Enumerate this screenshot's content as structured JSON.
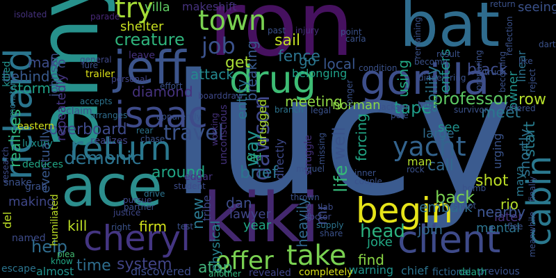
{
  "words": [
    {
      "text": "lucy",
      "color": "#3b5b8f"
    },
    {
      "text": "ron",
      "color": "#46115f"
    },
    {
      "text": "amy",
      "color": "#27918c"
    },
    {
      "text": "ace",
      "color": "#2c8e8d"
    },
    {
      "text": "kiki",
      "color": "#44286f"
    },
    {
      "text": "bat",
      "color": "#2f6c8e"
    },
    {
      "text": "richard",
      "color": "#2a758e"
    },
    {
      "text": "jeff",
      "color": "#3c548b"
    },
    {
      "text": "gorilla",
      "color": "#3d4e8a"
    },
    {
      "text": "cheryl",
      "color": "#443582"
    },
    {
      "text": "drug",
      "color": "#3dbc74"
    },
    {
      "text": "return",
      "color": "#2a788e"
    },
    {
      "text": "client",
      "color": "#3e4a89"
    },
    {
      "text": "isaac",
      "color": "#3e4b8a"
    },
    {
      "text": "begin",
      "color": "#e6e419"
    },
    {
      "text": "take",
      "color": "#7ad151"
    },
    {
      "text": "town",
      "color": "#7ad151"
    },
    {
      "text": "cabin",
      "color": "#2a788e"
    },
    {
      "text": "offer",
      "color": "#7ad151"
    },
    {
      "text": "yacht",
      "color": "#33638d"
    },
    {
      "text": "try",
      "color": "#a5db36"
    },
    {
      "text": "travel",
      "color": "#3b538b"
    },
    {
      "text": "job",
      "color": "#3b528b"
    },
    {
      "text": "professor",
      "color": "#5cc863"
    },
    {
      "text": "creature",
      "color": "#2fb47c"
    },
    {
      "text": "overboard",
      "color": "#3e4a89"
    },
    {
      "text": "demonic",
      "color": "#2c728e"
    },
    {
      "text": "around",
      "color": "#21a685"
    },
    {
      "text": "diamond",
      "color": "#46327e"
    },
    {
      "text": "dawson",
      "color": "#3f4788"
    },
    {
      "text": "way",
      "color": "#21918c"
    },
    {
      "text": "call",
      "color": "#31688e"
    },
    {
      "text": "back",
      "color": "#7ad151"
    },
    {
      "text": "brief",
      "color": "#2c738e"
    },
    {
      "text": "shot",
      "color": "#bddf26"
    },
    {
      "text": "head",
      "color": "#2cb17e"
    },
    {
      "text": "firm",
      "color": "#d2e21b"
    },
    {
      "text": "kill",
      "color": "#bddf26"
    },
    {
      "text": "time",
      "color": "#2e6e8e"
    },
    {
      "text": "system",
      "color": "#414487"
    },
    {
      "text": "help",
      "color": "#2f6c8e"
    },
    {
      "text": "find",
      "color": "#8bd646"
    },
    {
      "text": "nearby",
      "color": "#3b528b"
    },
    {
      "text": "joke",
      "color": "#22a884"
    },
    {
      "text": "row",
      "color": "#b5de2b"
    },
    {
      "text": "meet",
      "color": "#2a778e"
    },
    {
      "text": "start",
      "color": "#287d8e"
    },
    {
      "text": "rio",
      "color": "#b5de2b"
    },
    {
      "text": "life",
      "color": "#35b779"
    },
    {
      "text": "well",
      "color": "#3a538b"
    },
    {
      "text": "forcing",
      "color": "#21a685"
    },
    {
      "text": "tape",
      "color": "#1f9e89"
    },
    {
      "text": "meeting",
      "color": "#8fd744"
    },
    {
      "text": "sail",
      "color": "#c2df23"
    },
    {
      "text": "go",
      "color": "#2a778e"
    },
    {
      "text": "fence",
      "color": "#2c738e"
    },
    {
      "text": "local",
      "color": "#39568c"
    },
    {
      "text": "breaking",
      "color": "#38588c"
    },
    {
      "text": "attack",
      "color": "#23898e"
    },
    {
      "text": "entity",
      "color": "#2b748e"
    },
    {
      "text": "get",
      "color": "#a8db34"
    },
    {
      "text": "make",
      "color": "#3d4d8a"
    },
    {
      "text": "storm",
      "color": "#1fa188"
    },
    {
      "text": "behind",
      "color": "#38598c"
    },
    {
      "text": "black",
      "color": "#3e4c8a"
    },
    {
      "text": "ability",
      "color": "#2c738e"
    },
    {
      "text": "enters",
      "color": "#20938c"
    },
    {
      "text": "using",
      "color": "#22a884"
    },
    {
      "text": "large",
      "color": "#2f6b8e"
    },
    {
      "text": "see",
      "color": "#20928c"
    },
    {
      "text": "shortly",
      "color": "#2d718e"
    },
    {
      "text": "owner",
      "color": "#21918c"
    },
    {
      "text": "later",
      "color": "#46337f"
    },
    {
      "text": "nearby2",
      "color": "#3b528b"
    },
    {
      "text": "new",
      "color": "#2a778e"
    },
    {
      "text": "mr",
      "color": "#3e4c8a"
    },
    {
      "text": "dan",
      "color": "#3d4d8a"
    },
    {
      "text": "lawyer",
      "color": "#404688"
    },
    {
      "text": "embark",
      "color": "#2f6c8e"
    },
    {
      "text": "join",
      "color": "#31688e"
    },
    {
      "text": "year",
      "color": "#21a685"
    },
    {
      "text": "physical",
      "color": "#26828e"
    },
    {
      "text": "atop",
      "color": "#42b27b"
    },
    {
      "text": "discovered",
      "color": "#3d4d8a"
    },
    {
      "text": "almost",
      "color": "#21918c"
    },
    {
      "text": "making",
      "color": "#3f4788"
    },
    {
      "text": "realises",
      "color": "#2fb47c"
    },
    {
      "text": "eventually",
      "color": "#38588c"
    },
    {
      "text": "repeatedly",
      "color": "#453581"
    },
    {
      "text": "johnson",
      "color": "#3c508b"
    },
    {
      "text": "villa",
      "color": "#5ec962"
    },
    {
      "text": "makeshift",
      "color": "#46327e"
    },
    {
      "text": "shelter",
      "color": "#c8e020"
    },
    {
      "text": "tribe",
      "color": "#3f4788"
    },
    {
      "text": "heavily",
      "color": "#31688e"
    },
    {
      "text": "warning",
      "color": "#20938c"
    },
    {
      "text": "man",
      "color": "#b2dd2d"
    },
    {
      "text": "seeing",
      "color": "#3b528b"
    },
    {
      "text": "linear",
      "color": "#2c738e"
    },
    {
      "text": "mental",
      "color": "#2c738e"
    },
    {
      "text": "maya",
      "color": "#2a778e"
    },
    {
      "text": "urging",
      "color": "#3a548c"
    },
    {
      "text": "humiliated",
      "color": "#bddf26"
    },
    {
      "text": "edgar",
      "color": "#46337f"
    },
    {
      "text": "norman",
      "color": "#8bd646"
    },
    {
      "text": "belonging",
      "color": "#1fa188"
    },
    {
      "text": "drugged",
      "color": "#ade02f"
    },
    {
      "text": "directly",
      "color": "#3e4989"
    },
    {
      "text": "unconscious",
      "color": "#46337f"
    },
    {
      "text": "old",
      "color": "#32b67a"
    },
    {
      "text": "chief",
      "color": "#2c738e"
    },
    {
      "text": "previous",
      "color": "#3b528b"
    },
    {
      "text": "fictional",
      "color": "#31688e"
    },
    {
      "text": "death",
      "color": "#21a685"
    },
    {
      "text": "completely",
      "color": "#dbe319"
    },
    {
      "text": "revealed",
      "color": "#404588"
    },
    {
      "text": "another",
      "color": "#31b57b"
    },
    {
      "text": "know",
      "color": "#21a685"
    },
    {
      "text": "plea",
      "color": "#42bb72"
    },
    {
      "text": "escape",
      "color": "#2b748e"
    },
    {
      "text": "named",
      "color": "#3e4c8a"
    },
    {
      "text": "del",
      "color": "#bddf26"
    },
    {
      "text": "snake",
      "color": "#3b528b"
    },
    {
      "text": "grab",
      "color": "#3b528b"
    },
    {
      "text": "research",
      "color": "#3e4c8a"
    },
    {
      "text": "luxury",
      "color": "#20928c"
    },
    {
      "text": "deduces",
      "color": "#21a685"
    },
    {
      "text": "eastern",
      "color": "#d2e21b"
    },
    {
      "text": "killed",
      "color": "#21918c"
    },
    {
      "text": "monster",
      "color": "#2c738e"
    },
    {
      "text": "isolated",
      "color": "#46327e"
    },
    {
      "text": "parade",
      "color": "#482878"
    },
    {
      "text": "lure",
      "color": "#3c508b"
    },
    {
      "text": "trailer",
      "color": "#dde318"
    },
    {
      "text": "leave",
      "color": "#46327e"
    },
    {
      "text": "general",
      "color": "#3f4889"
    },
    {
      "text": "accepts",
      "color": "#2c738e"
    },
    {
      "text": "claim",
      "color": "#3c508b"
    },
    {
      "text": "arranges",
      "color": "#2f6c8e"
    },
    {
      "text": "personal",
      "color": "#414487"
    },
    {
      "text": "effort",
      "color": "#3b528b"
    },
    {
      "text": "board",
      "color": "#3f4889"
    },
    {
      "text": "realizes",
      "color": "#414487"
    },
    {
      "text": "chase",
      "color": "#3b528b"
    },
    {
      "text": "rear",
      "color": "#2c738e"
    },
    {
      "text": "apparently",
      "color": "#3b528b"
    },
    {
      "text": "student",
      "color": "#3e4c8a"
    },
    {
      "text": "drive",
      "color": "#2c738e"
    },
    {
      "text": "pursue",
      "color": "#3f4889"
    },
    {
      "text": "partner",
      "color": "#3b528b"
    },
    {
      "text": "justice",
      "color": "#3f4889"
    },
    {
      "text": "right",
      "color": "#3b528b"
    },
    {
      "text": "test",
      "color": "#3b528b"
    },
    {
      "text": "working",
      "color": "#46327e"
    },
    {
      "text": "past",
      "color": "#3b528b"
    },
    {
      "text": "injury",
      "color": "#46327e"
    },
    {
      "text": "draw",
      "color": "#3e4c8a"
    },
    {
      "text": "legal",
      "color": "#3b528b"
    },
    {
      "text": "branch",
      "color": "#2c738e"
    },
    {
      "text": "struggle",
      "color": "#46327e"
    },
    {
      "text": "missing",
      "color": "#3b528b"
    },
    {
      "text": "miguel",
      "color": "#3b528b"
    },
    {
      "text": "thrown",
      "color": "#3b528b"
    },
    {
      "text": "asks",
      "color": "#3e4c8a"
    },
    {
      "text": "lab",
      "color": "#3e4c8a"
    },
    {
      "text": "doctor",
      "color": "#3f4889"
    },
    {
      "text": "supply",
      "color": "#2c738e"
    },
    {
      "text": "share",
      "color": "#3b528b"
    },
    {
      "text": "inner",
      "color": "#3b528b"
    },
    {
      "text": "couple",
      "color": "#3b528b"
    },
    {
      "text": "rock",
      "color": "#3b528b"
    },
    {
      "text": "jackson",
      "color": "#3b528b"
    },
    {
      "text": "pole",
      "color": "#3b528b"
    },
    {
      "text": "longer",
      "color": "#3b528b"
    },
    {
      "text": "condition",
      "color": "#3b528b"
    },
    {
      "text": "point",
      "color": "#3b528b"
    },
    {
      "text": "carla",
      "color": "#3b528b"
    },
    {
      "text": "become",
      "color": "#3b528b"
    },
    {
      "text": "remaining",
      "color": "#3b528b"
    },
    {
      "text": "preparing",
      "color": "#3b528b"
    },
    {
      "text": "truck",
      "color": "#3b528b"
    },
    {
      "text": "dinner",
      "color": "#3b528b"
    },
    {
      "text": "ring",
      "color": "#3b528b"
    },
    {
      "text": "bag",
      "color": "#3b528b"
    },
    {
      "text": "survivor",
      "color": "#3b528b"
    },
    {
      "text": "offered",
      "color": "#3b528b"
    },
    {
      "text": "bomb",
      "color": "#3b528b"
    },
    {
      "text": "shoot",
      "color": "#3b528b"
    },
    {
      "text": "flee",
      "color": "#3b528b"
    },
    {
      "text": "finally",
      "color": "#3b528b"
    },
    {
      "text": "meanwhile",
      "color": "#3b528b"
    },
    {
      "text": "like",
      "color": "#3b528b"
    },
    {
      "text": "reject",
      "color": "#3b528b"
    },
    {
      "text": "result",
      "color": "#3b528b"
    },
    {
      "text": "becoming",
      "color": "#3b528b"
    },
    {
      "text": "reflection",
      "color": "#3b528b"
    },
    {
      "text": "dart",
      "color": "#3b528b"
    },
    {
      "text": "return2",
      "color": "#3b528b"
    }
  ]
}
